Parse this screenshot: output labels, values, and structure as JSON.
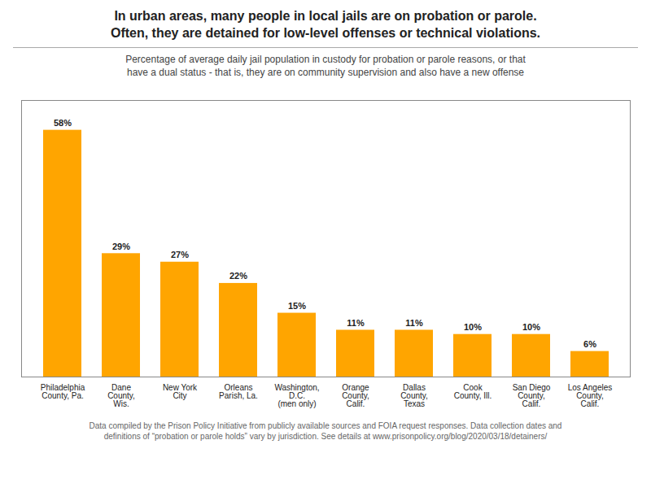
{
  "chart_data": {
    "type": "bar",
    "title": "In urban areas, many people in local jails are on probation or parole.\nOften, they are detained for low-level offenses or technical violations.",
    "subtitle": "Percentage of average daily jail population in custody for probation or parole reasons, or that\nhave a dual status - that is, they are on community supervision and also have a new offense",
    "caption": "Data compiled by the Prison Policy Initiative from publicly available sources and FOIA request responses. Data collection dates and\ndefinitions of “probation or parole holds” vary by jurisdiction. See details at www.prisonpolicy.org/blog/2020/03/18/detainers/",
    "categories": [
      "Philadelphia\nCounty, Pa.",
      "Dane\nCounty,\nWis.",
      "New York\nCity",
      "Orleans\nParish, La.",
      "Washington,\nD.C.\n(men only)",
      "Orange\nCounty,\nCalif.",
      "Dallas\nCounty,\nTexas",
      "Cook\nCounty, Ill.",
      "San Diego\nCounty,\nCalif.",
      "Los Angeles\nCounty,\nCalif."
    ],
    "values": [
      58,
      29,
      27,
      22,
      15,
      11,
      11,
      10,
      10,
      6
    ],
    "value_labels": [
      "58%",
      "29%",
      "27%",
      "22%",
      "15%",
      "11%",
      "11%",
      "10%",
      "10%",
      "6%"
    ],
    "color": "#FFA500",
    "ylim": [
      0,
      65
    ],
    "grid": false,
    "data_labels": true,
    "tick_labels": "x"
  }
}
